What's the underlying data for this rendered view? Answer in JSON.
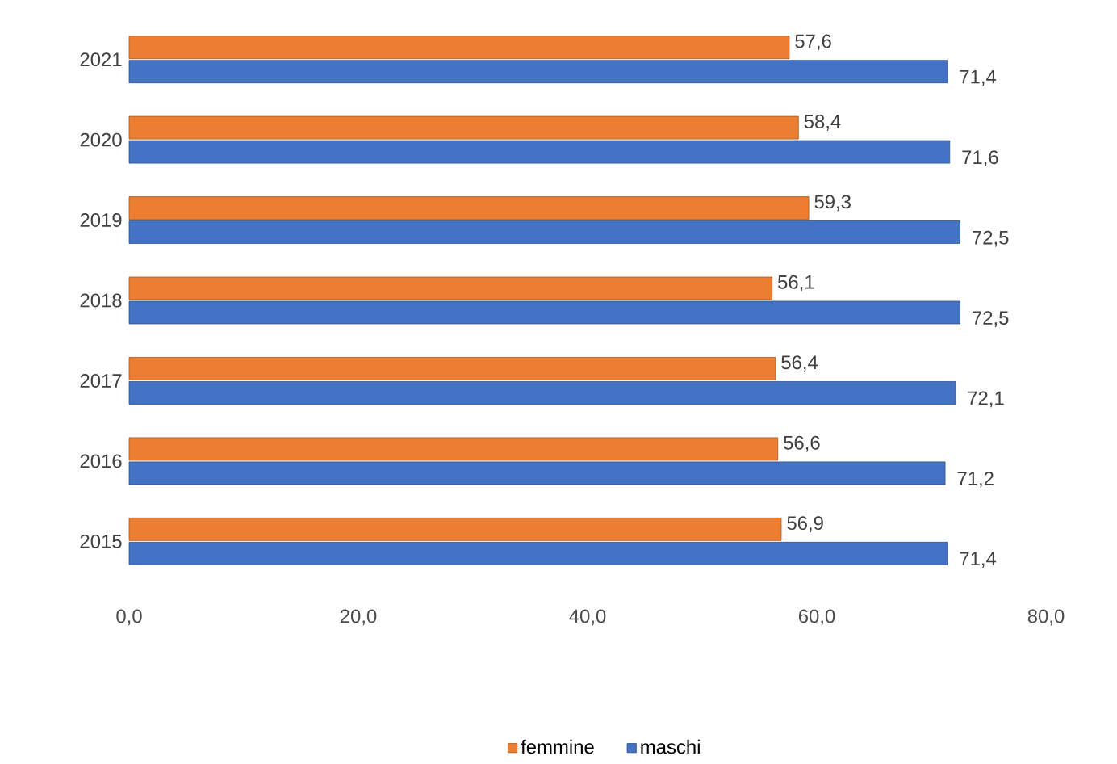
{
  "chart_data": {
    "type": "bar",
    "orientation": "horizontal",
    "categories": [
      "2021",
      "2020",
      "2019",
      "2018",
      "2017",
      "2016",
      "2015"
    ],
    "series": [
      {
        "name": "femmine",
        "color": "#ed7d31",
        "values": [
          57.6,
          58.4,
          59.3,
          56.1,
          56.4,
          56.6,
          56.9
        ],
        "value_labels": [
          "57,6",
          "58,4",
          "59,3",
          "56,1",
          "56,4",
          "56,6",
          "56,9"
        ]
      },
      {
        "name": "maschi",
        "color": "#4472c4",
        "values": [
          71.4,
          71.6,
          72.5,
          72.5,
          72.1,
          71.2,
          71.4
        ],
        "value_labels": [
          "71,4",
          "71,6",
          "72,5",
          "72,5",
          "72,1",
          "71,2",
          "71,4"
        ]
      }
    ],
    "xlim": [
      0,
      80
    ],
    "xticks": [
      {
        "value": 0,
        "label": "0,0"
      },
      {
        "value": 20,
        "label": "20,0"
      },
      {
        "value": 40,
        "label": "40,0"
      },
      {
        "value": 60,
        "label": "60,0"
      },
      {
        "value": 80,
        "label": "80,0"
      }
    ],
    "legend": "bottom"
  }
}
